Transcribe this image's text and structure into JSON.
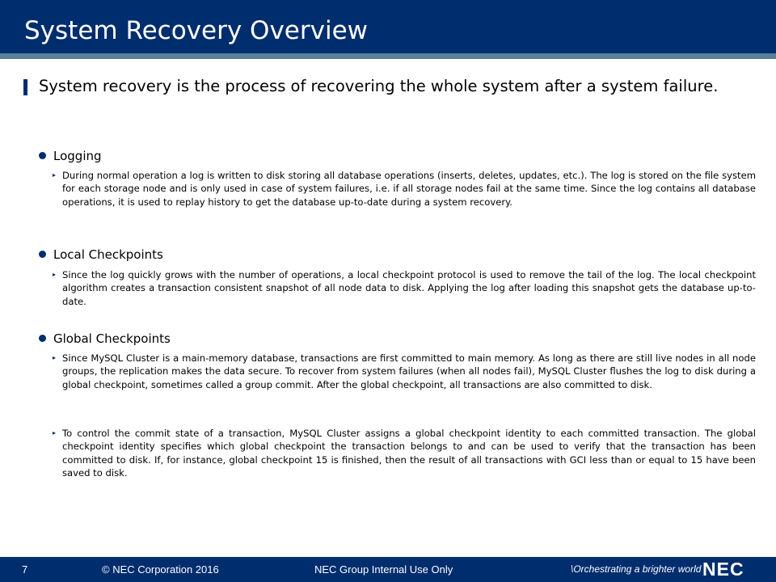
{
  "slide": {
    "title": "System Recovery Overview",
    "lead": "System recovery is the process of recovering the whole system after a system failure."
  },
  "sections": [
    {
      "heading": "Logging",
      "paragraphs": [
        "During normal operation a log is written to disk storing all database operations (inserts, deletes, updates, etc.). The log is stored on the file system for each storage node and is only used in case of system failures, i.e. if all storage nodes fail at the same time. Since the log contains all database operations, it is used to replay history to get the database up-to-date during a system recovery."
      ]
    },
    {
      "heading": "Local Checkpoints",
      "paragraphs": [
        "Since the log quickly grows with the number of operations, a local checkpoint protocol is used to remove the tail of the log. The local checkpoint algorithm creates a transaction consistent snapshot of all node data to disk. Applying the log after loading this snapshot gets the database up-to-date."
      ]
    },
    {
      "heading": "Global Checkpoints",
      "paragraphs": [
        "Since MySQL Cluster is a main-memory database, transactions are first committed to main memory. As long as there are still live nodes in all node groups, the replication makes the data secure. To recover from system failures (when all nodes fail), MySQL Cluster flushes the log to disk during a global checkpoint, sometimes called a group commit. After the global checkpoint, all transactions are also committed to disk.",
        "To control the commit state of a transaction, MySQL Cluster assigns a global checkpoint identity to each committed transaction. The global checkpoint identity specifies which global checkpoint the transaction belongs to and can be used to verify that the transaction has been committed to disk. If, for instance, global checkpoint 15 is finished, then the result of all transactions with GCI less than or equal to 15 have been saved to disk."
      ]
    }
  ],
  "footer": {
    "page_number": "7",
    "copyright": "© NEC Corporation 2016",
    "classification": "NEC Group Internal Use Only",
    "tagline": "\\Orchestrating a brighter world",
    "logo_text": "NEC"
  },
  "colors": {
    "title_bar": "#002d6e",
    "title_rule": "#587f98",
    "bullet": "#002d6e"
  },
  "icons": {
    "section_bullet": "filled-circle",
    "paragraph_bullet": "small-triangle"
  }
}
